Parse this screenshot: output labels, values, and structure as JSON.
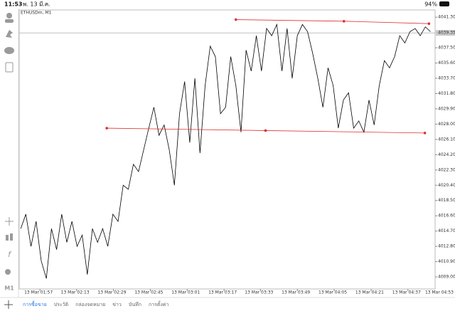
{
  "status_bar": {
    "time": "11:53",
    "date": "พ. 13 มี.ค.",
    "battery": "94%"
  },
  "sidebar": {
    "timeframe": "M1"
  },
  "chart_data": {
    "type": "line",
    "title": "ETHUSDm, M1",
    "series": [
      {
        "color": "#000000",
        "values": [
          4015.0,
          4016.8,
          4012.8,
          4015.9,
          4011.0,
          4008.8,
          4015.0,
          4012.4,
          4016.8,
          4013.3,
          4015.9,
          4012.8,
          4014.2,
          4009.3,
          4015.0,
          4013.3,
          4015.0,
          4012.8,
          4016.8,
          4015.9,
          4020.4,
          4019.9,
          4023.0,
          4022.1,
          4024.8,
          4027.5,
          4030.1,
          4026.6,
          4027.9,
          4024.8,
          4020.4,
          4029.3,
          4033.3,
          4025.7,
          4033.7,
          4024.4,
          4032.8,
          4037.7,
          4036.4,
          4029.3,
          4030.1,
          4036.4,
          4032.8,
          4027.0,
          4037.2,
          4034.6,
          4039.0,
          4034.6,
          4039.9,
          4039.0,
          4040.4,
          4034.6,
          4039.9,
          4033.7,
          4039.0,
          4040.4,
          4039.5,
          4036.8,
          4033.7,
          4030.1,
          4035.0,
          4032.8,
          4027.5,
          4031.0,
          4031.9,
          4027.5,
          4028.4,
          4027.0,
          4031.0,
          4027.9,
          4032.8,
          4035.9,
          4035.0,
          4036.4,
          4039.0,
          4038.1,
          4039.5,
          4039.9,
          4039.0,
          4040.1,
          4039.5
        ]
      }
    ],
    "trendlines": [
      {
        "color": "#e03030",
        "x": [
          42.0,
          63.1,
          79.7
        ],
        "values": [
          4041.0,
          4040.8,
          4040.5
        ]
      },
      {
        "color": "#e03030",
        "x": [
          16.8,
          47.8,
          78.9
        ],
        "values": [
          4027.5,
          4027.2,
          4026.9
        ]
      }
    ],
    "current_price": 4039.35,
    "xlim": [
      -0.3,
      80.9
    ],
    "xticks": [
      {
        "value": 3.75,
        "label": "13 Mar 01:57"
      },
      {
        "value": 10.9,
        "label": "13 Mar 02:13"
      },
      {
        "value": 18.1,
        "label": "13 Mar 02:29"
      },
      {
        "value": 25.3,
        "label": "13 Mar 02:45"
      },
      {
        "value": 32.5,
        "label": "13 Mar 03:01"
      },
      {
        "value": 39.7,
        "label": "13 Mar 03:17"
      },
      {
        "value": 46.8,
        "label": "13 Mar 03:33"
      },
      {
        "value": 54.0,
        "label": "13 Mar 03:49"
      },
      {
        "value": 61.2,
        "label": "13 Mar 04:05"
      },
      {
        "value": 68.4,
        "label": "13 Mar 04:21"
      },
      {
        "value": 75.6,
        "label": "13 Mar 04:37"
      },
      {
        "value": 82.7,
        "label": "13 Mar 04:53"
      }
    ],
    "ylim": [
      4007.5,
      4042.2
    ],
    "yticks": [
      {
        "value": 4041.3,
        "label": "4041.30"
      },
      {
        "value": 4037.5,
        "label": "4037.50"
      },
      {
        "value": 4035.6,
        "label": "4035.60"
      },
      {
        "value": 4033.7,
        "label": "4033.70"
      },
      {
        "value": 4031.8,
        "label": "4031.80"
      },
      {
        "value": 4029.9,
        "label": "4029.90"
      },
      {
        "value": 4028.0,
        "label": "4028.00"
      },
      {
        "value": 4026.1,
        "label": "4026.10"
      },
      {
        "value": 4024.2,
        "label": "4024.20"
      },
      {
        "value": 4022.3,
        "label": "4022.30"
      },
      {
        "value": 4020.4,
        "label": "4020.40"
      },
      {
        "value": 4018.5,
        "label": "4018.50"
      },
      {
        "value": 4016.6,
        "label": "4016.60"
      },
      {
        "value": 4014.7,
        "label": "4014.70"
      },
      {
        "value": 4012.8,
        "label": "4012.80"
      },
      {
        "value": 4010.9,
        "label": "4010.90"
      },
      {
        "value": 4009.0,
        "label": "4009.00"
      }
    ]
  },
  "tabs": [
    {
      "label": "การซื้อขาย",
      "active": true
    },
    {
      "label": "ประวัติ"
    },
    {
      "label": "กล่องจดหมาย"
    },
    {
      "label": "ข่าว"
    },
    {
      "label": "บันทึก"
    },
    {
      "label": "การตั้งค่า"
    }
  ]
}
